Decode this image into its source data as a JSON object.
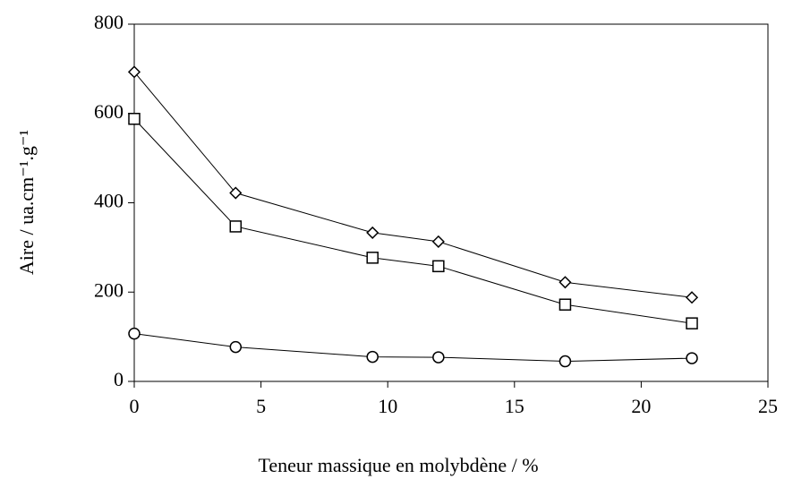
{
  "chart_data": {
    "type": "line",
    "x_label": "Teneur massique en molybdène / %",
    "y_label": "Aire / ua.cm⁻¹.g⁻¹",
    "x": [
      0,
      4,
      9.4,
      12,
      17,
      22
    ],
    "series": [
      {
        "marker": "diamond",
        "color": "#000000",
        "values": [
          693,
          422,
          333,
          313,
          222,
          188
        ]
      },
      {
        "marker": "square",
        "color": "#000000",
        "values": [
          588,
          347,
          277,
          258,
          172,
          130
        ]
      },
      {
        "marker": "circle",
        "color": "#000000",
        "values": [
          107,
          77,
          55,
          54,
          45,
          52
        ]
      }
    ],
    "xlim": [
      0,
      25
    ],
    "xticks": [
      0,
      5,
      10,
      15,
      20,
      25
    ],
    "ylim": [
      0,
      800
    ],
    "yticks": [
      0,
      200,
      400,
      600,
      800
    ]
  }
}
